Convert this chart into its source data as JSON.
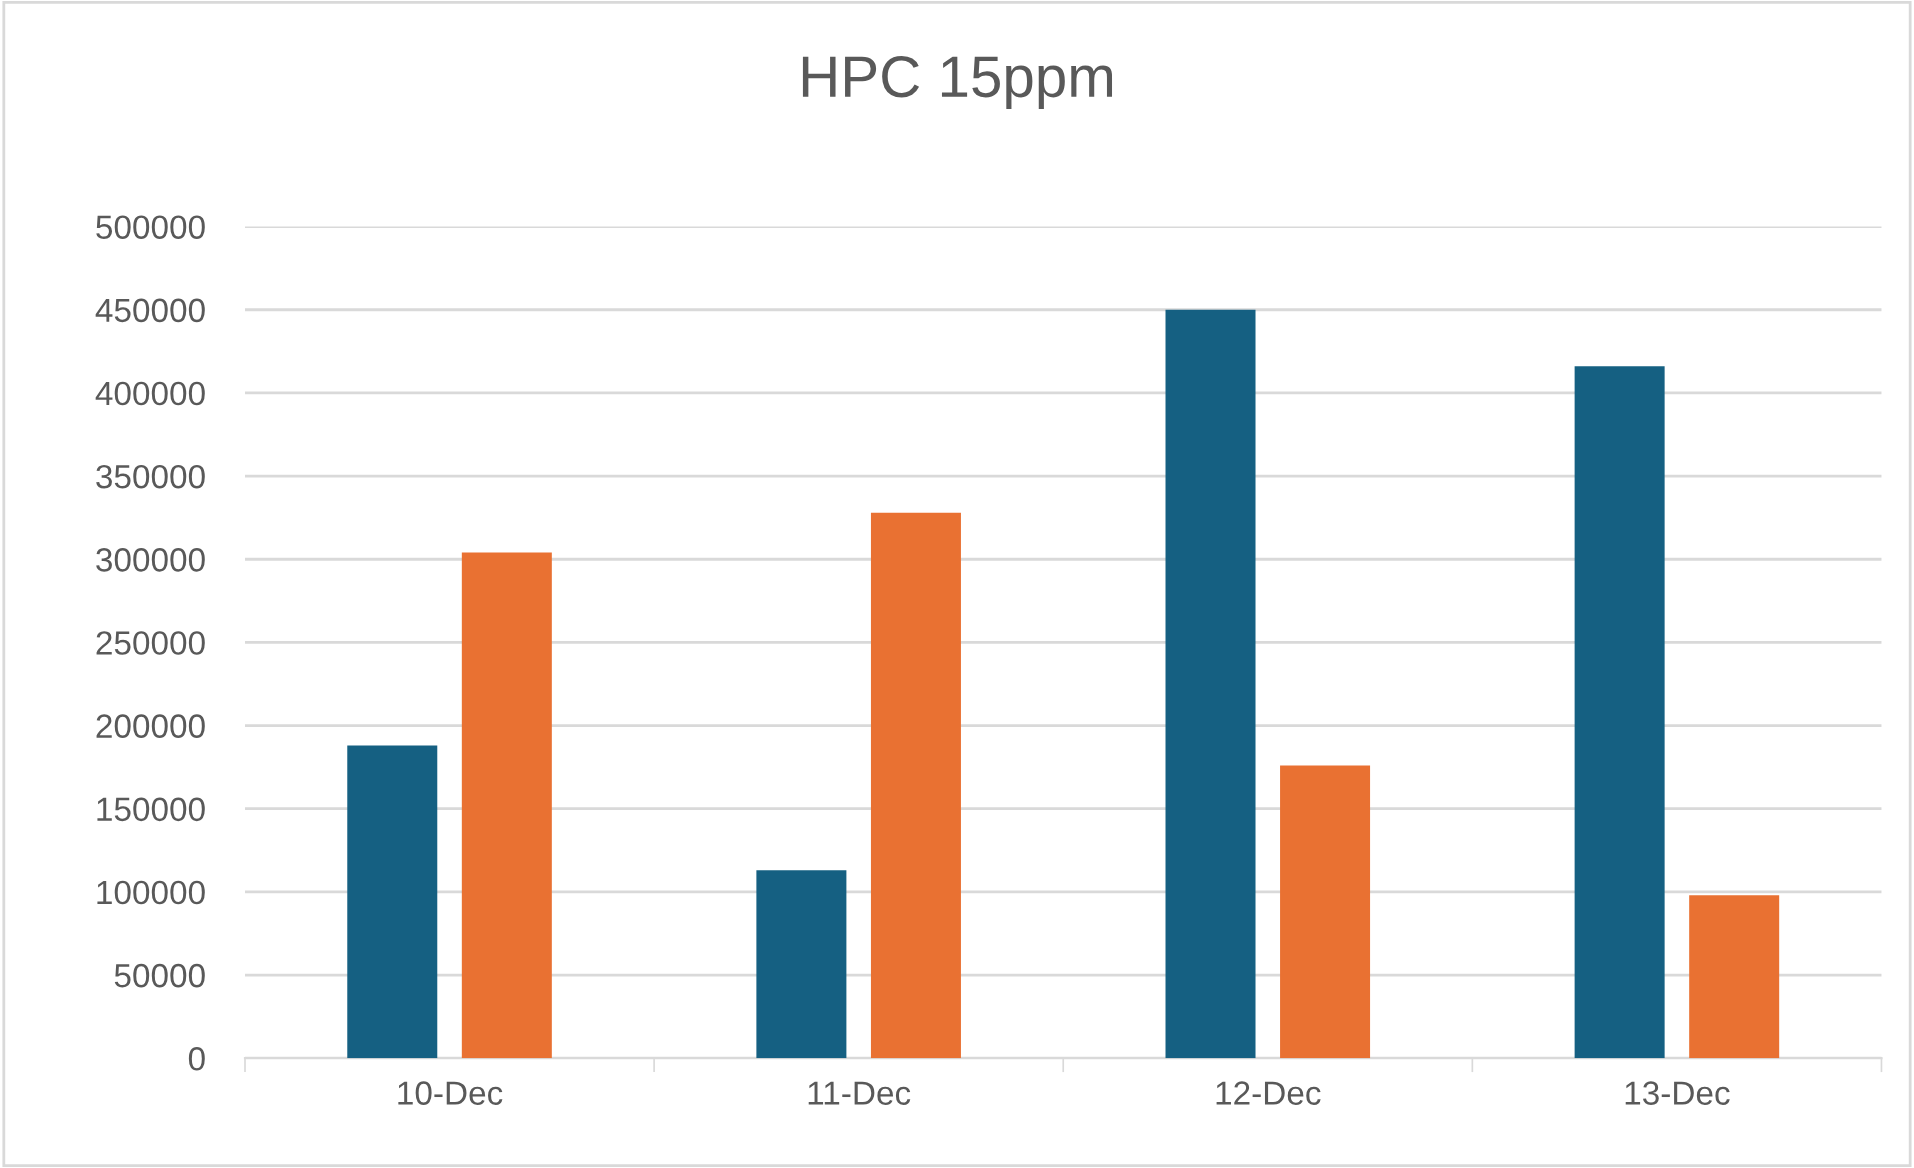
{
  "chart_data": {
    "type": "bar",
    "title": "HPC 15ppm",
    "categories": [
      "10-Dec",
      "11-Dec",
      "12-Dec",
      "13-Dec"
    ],
    "series": [
      {
        "color": "#156082",
        "values": [
          188000,
          113000,
          450000,
          416000
        ]
      },
      {
        "color": "#e97132",
        "values": [
          304000,
          328000,
          176000,
          98000
        ]
      }
    ],
    "ylim": [
      0,
      500000
    ],
    "yticks": [
      0,
      50000,
      100000,
      150000,
      200000,
      250000,
      300000,
      350000,
      400000,
      450000,
      500000
    ],
    "grid": "y"
  }
}
